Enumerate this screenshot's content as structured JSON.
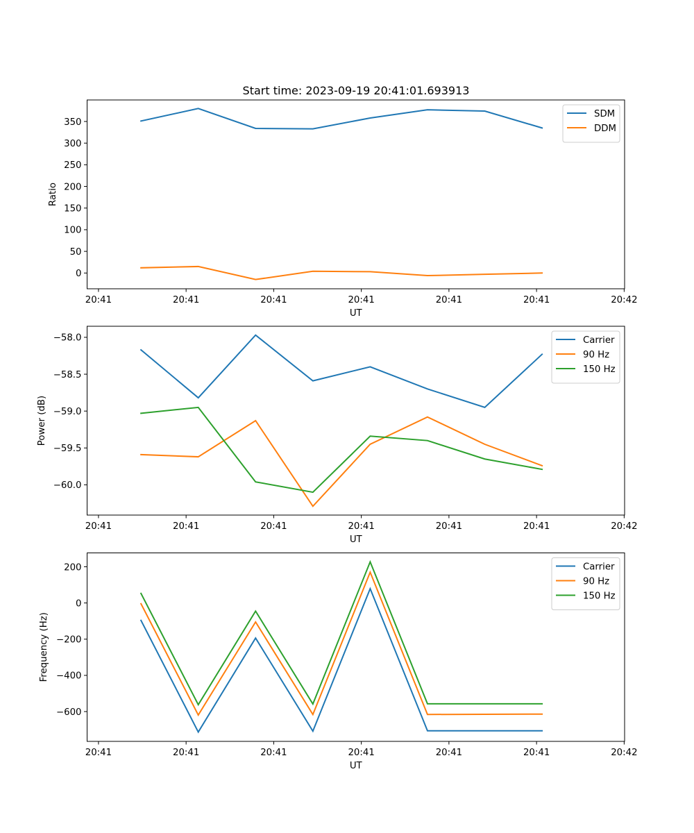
{
  "chart_data": [
    {
      "type": "line",
      "title": "Start time: 2023-09-19 20:41:01.693913",
      "xlabel": "UT",
      "ylabel": "Ratio",
      "x_units": "seconds after 20:41:00 UT",
      "x": [
        4.85,
        11.39,
        17.93,
        24.47,
        31.01,
        37.55,
        44.09,
        50.63
      ],
      "xlim": [
        -1.3,
        60.05
      ],
      "xticks": [
        0,
        10,
        20,
        30,
        40,
        50,
        60
      ],
      "xtick_labels": [
        "20:41",
        "20:41",
        "20:41",
        "20:41",
        "20:41",
        "20:41",
        "20:42"
      ],
      "ylim": [
        -36.4,
        399.7
      ],
      "yticks": [
        0,
        50,
        100,
        150,
        200,
        250,
        300,
        350
      ],
      "ytick_labels": [
        "0",
        "50",
        "100",
        "150",
        "200",
        "250",
        "300",
        "350"
      ],
      "grid": false,
      "legend_position": "top-right",
      "series": [
        {
          "name": "SDM",
          "color": "#1f77b4",
          "values": [
            351,
            380,
            334,
            333,
            358,
            377,
            374,
            335
          ]
        },
        {
          "name": "DDM",
          "color": "#ff7f0e",
          "values": [
            12,
            15,
            -15,
            4,
            3,
            -6,
            -3,
            0
          ]
        }
      ]
    },
    {
      "type": "line",
      "title": "",
      "xlabel": "UT",
      "ylabel": "Power (dB)",
      "x_units": "seconds after 20:41:00 UT",
      "x": [
        4.85,
        11.39,
        17.93,
        24.47,
        31.01,
        37.55,
        44.09,
        50.63
      ],
      "xlim": [
        -1.3,
        60.05
      ],
      "xticks": [
        0,
        10,
        20,
        30,
        40,
        50,
        60
      ],
      "xtick_labels": [
        "20:41",
        "20:41",
        "20:41",
        "20:41",
        "20:41",
        "20:41",
        "20:42"
      ],
      "ylim": [
        -60.41,
        -57.85
      ],
      "yticks": [
        -60.0,
        -59.5,
        -59.0,
        -58.5,
        -58.0
      ],
      "ytick_labels": [
        "−60.0",
        "−59.5",
        "−59.0",
        "−58.5",
        "−58.0"
      ],
      "grid": false,
      "legend_position": "top-right",
      "series": [
        {
          "name": "Carrier",
          "color": "#1f77b4",
          "values": [
            -58.17,
            -58.82,
            -57.97,
            -58.59,
            -58.4,
            -58.7,
            -58.95,
            -58.23
          ]
        },
        {
          "name": "90 Hz",
          "color": "#ff7f0e",
          "values": [
            -59.59,
            -59.62,
            -59.13,
            -60.29,
            -59.45,
            -59.08,
            -59.45,
            -59.74
          ]
        },
        {
          "name": "150 Hz",
          "color": "#2ca02c",
          "values": [
            -59.03,
            -58.95,
            -59.96,
            -60.1,
            -59.34,
            -59.4,
            -59.65,
            -59.79
          ]
        }
      ]
    },
    {
      "type": "line",
      "title": "",
      "xlabel": "UT",
      "ylabel": "Frequency (Hz)",
      "x_units": "seconds after 20:41:00 UT",
      "x": [
        4.85,
        11.39,
        17.93,
        24.47,
        31.01,
        37.55,
        44.09,
        50.63
      ],
      "xlim": [
        -1.3,
        60.05
      ],
      "xticks": [
        0,
        10,
        20,
        30,
        40,
        50,
        60
      ],
      "xtick_labels": [
        "20:41",
        "20:41",
        "20:41",
        "20:41",
        "20:41",
        "20:41",
        "20:42"
      ],
      "ylim": [
        -764.6,
        276.6
      ],
      "yticks": [
        -600,
        -400,
        -200,
        0,
        200
      ],
      "ytick_labels": [
        "−600",
        "−400",
        "−200",
        "0",
        "200"
      ],
      "grid": false,
      "legend_position": "top-right",
      "series": [
        {
          "name": "Carrier",
          "color": "#1f77b4",
          "values": [
            -96,
            -713,
            -194,
            -708,
            79,
            -706,
            -706,
            -706
          ]
        },
        {
          "name": "90 Hz",
          "color": "#ff7f0e",
          "values": [
            -4,
            -619,
            -105,
            -616,
            170,
            -616,
            -615,
            -614
          ]
        },
        {
          "name": "150 Hz",
          "color": "#2ca02c",
          "values": [
            53,
            -562,
            -45,
            -558,
            227,
            -557,
            -557,
            -557
          ]
        }
      ]
    }
  ]
}
